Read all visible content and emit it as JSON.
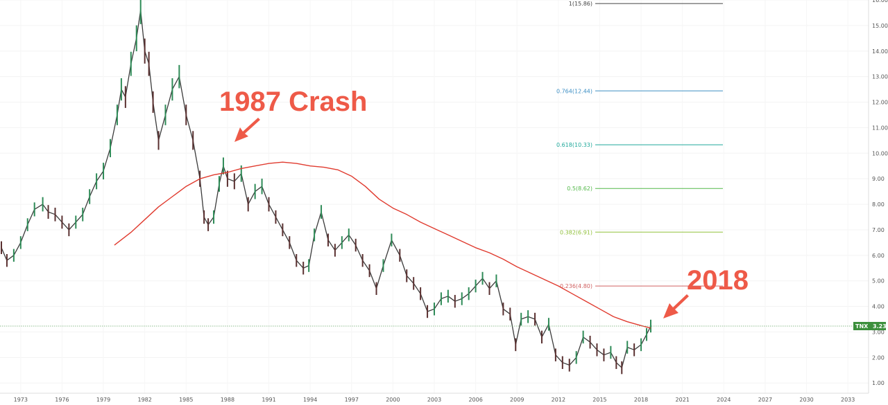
{
  "chart_data": {
    "type": "line",
    "title": "",
    "xlabel": "",
    "ylabel": "",
    "symbol": "TNX",
    "current_value": "3.23",
    "xlim": [
      1971.5,
      2034.5
    ],
    "ylim": [
      0.6,
      16.0
    ],
    "x_ticks": [
      "1973",
      "1976",
      "1979",
      "1982",
      "1985",
      "1988",
      "1991",
      "1994",
      "1997",
      "2000",
      "2003",
      "2006",
      "2009",
      "2012",
      "2015",
      "2018",
      "2021",
      "2024",
      "2027",
      "2030",
      "2033"
    ],
    "y_ticks": [
      "1.00",
      "2.00",
      "3.00",
      "4.00",
      "5.00",
      "6.00",
      "7.00",
      "8.00",
      "9.00",
      "10.00",
      "11.00",
      "12.00",
      "13.00",
      "14.00",
      "15.00",
      "16.00"
    ],
    "series": [
      {
        "name": "",
        "color": "#3a3a3a",
        "x": [
          1971.6,
          1972.0,
          1972.5,
          1973.0,
          1973.5,
          1974.0,
          1974.6,
          1975.0,
          1975.5,
          1976.0,
          1976.5,
          1977.0,
          1977.5,
          1978.0,
          1978.5,
          1979.0,
          1979.5,
          1980.0,
          1980.3,
          1980.6,
          1981.0,
          1981.4,
          1981.7,
          1982.0,
          1982.3,
          1982.6,
          1983.0,
          1983.5,
          1984.0,
          1984.5,
          1985.0,
          1985.5,
          1986.0,
          1986.3,
          1986.6,
          1987.0,
          1987.4,
          1987.7,
          1988.0,
          1988.5,
          1989.0,
          1989.5,
          1990.0,
          1990.5,
          1991.0,
          1991.5,
          1992.0,
          1992.5,
          1993.0,
          1993.5,
          1993.9,
          1994.3,
          1994.8,
          1995.3,
          1995.8,
          1996.3,
          1996.8,
          1997.3,
          1997.8,
          1998.3,
          1998.8,
          1999.3,
          1999.9,
          2000.5,
          2001.0,
          2001.5,
          2002.0,
          2002.5,
          2003.0,
          2003.5,
          2004.0,
          2004.5,
          2005.0,
          2005.5,
          2006.0,
          2006.5,
          2007.0,
          2007.5,
          2008.0,
          2008.5,
          2008.9,
          2009.3,
          2009.8,
          2010.3,
          2010.8,
          2011.3,
          2011.8,
          2012.3,
          2012.8,
          2013.3,
          2013.8,
          2014.3,
          2014.8,
          2015.3,
          2015.8,
          2016.2,
          2016.6,
          2017.0,
          2017.5,
          2018.0,
          2018.4,
          2018.7
        ],
        "y": [
          6.3,
          5.8,
          6.0,
          6.5,
          7.2,
          7.8,
          8.0,
          7.7,
          7.6,
          7.3,
          7.0,
          7.3,
          7.6,
          8.3,
          8.9,
          9.3,
          10.2,
          11.5,
          12.5,
          12.2,
          13.5,
          14.5,
          15.6,
          14.0,
          13.5,
          12.0,
          10.5,
          11.5,
          12.5,
          13.0,
          11.5,
          10.5,
          9.0,
          7.5,
          7.2,
          7.5,
          8.8,
          9.5,
          9.0,
          8.9,
          9.2,
          8.0,
          8.5,
          8.7,
          8.0,
          7.5,
          7.0,
          6.5,
          5.8,
          5.5,
          5.6,
          6.8,
          7.7,
          6.6,
          6.2,
          6.5,
          6.8,
          6.4,
          5.8,
          5.4,
          4.7,
          5.6,
          6.6,
          6.0,
          5.2,
          4.9,
          4.5,
          3.8,
          3.9,
          4.3,
          4.4,
          4.2,
          4.3,
          4.5,
          4.8,
          5.1,
          4.7,
          5.0,
          3.9,
          3.7,
          2.5,
          3.5,
          3.6,
          3.5,
          2.8,
          3.3,
          2.1,
          1.8,
          1.7,
          2.0,
          2.8,
          2.6,
          2.3,
          2.1,
          2.2,
          1.8,
          1.6,
          2.4,
          2.3,
          2.5,
          2.9,
          3.23
        ]
      },
      {
        "name": "",
        "color": "#e03a2e",
        "x": [
          1979.8,
          1981.0,
          1982.0,
          1983.0,
          1984.0,
          1985.0,
          1986.0,
          1987.0,
          1988.0,
          1989.0,
          1990.0,
          1991.0,
          1992.0,
          1993.0,
          1994.0,
          1995.0,
          1996.0,
          1997.0,
          1998.0,
          1999.0,
          2000.0,
          2001.0,
          2002.0,
          2003.0,
          2004.0,
          2005.0,
          2006.0,
          2007.0,
          2008.0,
          2009.0,
          2010.0,
          2011.0,
          2012.0,
          2013.0,
          2014.0,
          2015.0,
          2016.0,
          2017.0,
          2018.0,
          2018.7
        ],
        "y": [
          6.4,
          6.9,
          7.4,
          7.9,
          8.3,
          8.7,
          9.0,
          9.15,
          9.25,
          9.4,
          9.5,
          9.6,
          9.65,
          9.6,
          9.5,
          9.45,
          9.35,
          9.1,
          8.7,
          8.2,
          7.85,
          7.6,
          7.3,
          7.05,
          6.8,
          6.55,
          6.3,
          6.1,
          5.85,
          5.55,
          5.3,
          5.05,
          4.8,
          4.5,
          4.2,
          3.9,
          3.6,
          3.4,
          3.25,
          3.15
        ]
      }
    ],
    "fib_levels": [
      {
        "label": "1(15.86)",
        "value": 15.86,
        "color": "#444444"
      },
      {
        "label": "0.764(12.44)",
        "value": 12.44,
        "color": "#3e8fc4"
      },
      {
        "label": "0.618(10.33)",
        "value": 10.33,
        "color": "#1fa89a"
      },
      {
        "label": "0.5(8.62)",
        "value": 8.62,
        "color": "#52b848"
      },
      {
        "label": "0.382(6.91)",
        "value": 6.91,
        "color": "#90c03a"
      },
      {
        "label": "0.236(4.80)",
        "value": 4.8,
        "color": "#d06060"
      }
    ],
    "annotations": [
      {
        "text": "1987 Crash",
        "color": "#ee5a48"
      },
      {
        "text": "2018",
        "color": "#ee5a48"
      }
    ],
    "grid": true,
    "legend": "none"
  }
}
